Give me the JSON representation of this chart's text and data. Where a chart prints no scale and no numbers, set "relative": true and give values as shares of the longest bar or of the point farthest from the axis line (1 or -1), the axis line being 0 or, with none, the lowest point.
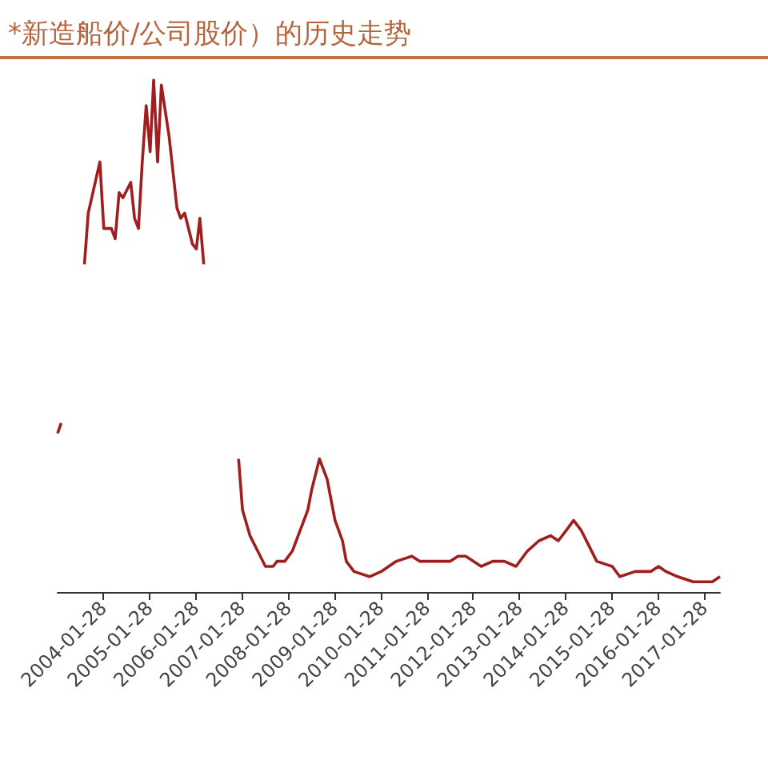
{
  "chart_data": {
    "type": "line",
    "title": "*新造船价/公司股价）的历史走势",
    "relative": true,
    "marker": "none",
    "line_style": "solid",
    "grid": false,
    "xlim": [
      "2003-02",
      "2017-06"
    ],
    "xticks": [
      "2004-01-28",
      "2005-01-28",
      "2006-01-28",
      "2007-01-28",
      "2008-01-28",
      "2009-01-28",
      "2010-01-28",
      "2011-01-28",
      "2012-01-28",
      "2013-01-28",
      "2014-01-28",
      "2015-01-28",
      "2016-01-28",
      "2017-01-28"
    ],
    "x": [
      "2003-02",
      "2003-03",
      "2003-05",
      "2003-09",
      "2003-10",
      "2004-01",
      "2004-02",
      "2004-04",
      "2004-05",
      "2004-06",
      "2004-07",
      "2004-09",
      "2004-10",
      "2004-11",
      "2004-12",
      "2005-01",
      "2005-02",
      "2005-03",
      "2005-04",
      "2005-05",
      "2005-07",
      "2005-09",
      "2005-10",
      "2005-11",
      "2006-01",
      "2006-02",
      "2006-03",
      "2006-04",
      "2006-08",
      "2007-01",
      "2007-02",
      "2007-04",
      "2007-06",
      "2007-08",
      "2007-10",
      "2007-11",
      "2008-01",
      "2008-03",
      "2008-05",
      "2008-07",
      "2008-08",
      "2008-10",
      "2008-12",
      "2009-02",
      "2009-04",
      "2009-05",
      "2009-07",
      "2009-11",
      "2010-02",
      "2010-04",
      "2010-06",
      "2010-10",
      "2010-12",
      "2011-03",
      "2011-06",
      "2011-08",
      "2011-10",
      "2011-12",
      "2012-04",
      "2012-07",
      "2012-10",
      "2013-01",
      "2013-04",
      "2013-07",
      "2013-10",
      "2013-12",
      "2014-02",
      "2014-04",
      "2014-06",
      "2014-08",
      "2014-10",
      "2015-02",
      "2015-04",
      "2015-08",
      "2015-12",
      "2016-02",
      "2016-04",
      "2016-07",
      "2016-11",
      "2017-01",
      "2017-04",
      "2017-06"
    ],
    "series": [
      {
        "color": "#a01e1e",
        "values": [
          0.31,
          0.33,
          null,
          0.64,
          0.74,
          0.84,
          0.71,
          0.71,
          0.69,
          0.78,
          0.77,
          0.8,
          0.73,
          0.71,
          0.84,
          0.95,
          0.86,
          1,
          0.84,
          0.99,
          0.89,
          0.75,
          0.73,
          0.74,
          0.68,
          0.67,
          0.73,
          0.64,
          null,
          0.26,
          0.16,
          0.11,
          0.08,
          0.05,
          0.05,
          0.06,
          0.06,
          0.08,
          0.12,
          0.16,
          0.2,
          0.26,
          0.22,
          0.14,
          0.1,
          0.06,
          0.04,
          0.03,
          0.04,
          0.05,
          0.06,
          0.07,
          0.06,
          0.06,
          0.06,
          0.06,
          0.07,
          0.07,
          0.05,
          0.06,
          0.06,
          0.05,
          0.08,
          0.1,
          0.11,
          0.1,
          0.12,
          0.14,
          0.12,
          0.09,
          0.06,
          0.05,
          0.03,
          0.04,
          0.04,
          0.05,
          0.04,
          0.03,
          0.02,
          0.02,
          0.02,
          0.03
        ]
      }
    ]
  }
}
